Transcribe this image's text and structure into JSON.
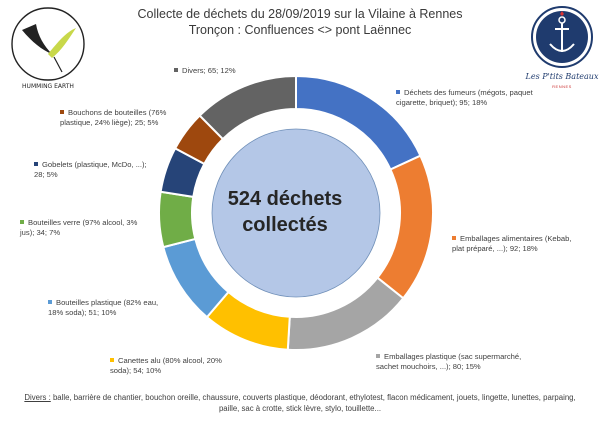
{
  "header": {
    "title_line1": "Collecte de déchets du 28/09/2019 sur la Vilaine à Rennes",
    "title_line2": "Tronçon : Confluences <> pont Laënnec"
  },
  "logos": {
    "left_text": "HUMMING EARTH",
    "right_text": "Les P'tits Bateaux",
    "right_sub": "RENNES"
  },
  "chart_data": {
    "type": "pie",
    "title": "Collecte de déchets du 28/09/2019 sur la Vilaine à Rennes",
    "subtitle": "Tronçon : Confluences <> pont Laënnec",
    "center_label_line1": "524 déchets",
    "center_label_line2": "collectés",
    "total": 524,
    "slices": [
      {
        "label": "Déchets des fumeurs (mégots, paquet cigarette, briquet); 95; 18%",
        "value": 95,
        "percent": 18,
        "color": "#4472C4"
      },
      {
        "label": "Emballages alimentaires (Kebab, plat préparé, ...); 92; 18%",
        "value": 92,
        "percent": 18,
        "color": "#ED7D31"
      },
      {
        "label": "Emballages plastique (sac supermarché, sachet mouchoirs, ...); 80; 15%",
        "value": 80,
        "percent": 15,
        "color": "#A5A5A5"
      },
      {
        "label": "Canettes alu (80% alcool, 20% soda); 54; 10%",
        "value": 54,
        "percent": 10,
        "color": "#FFC000"
      },
      {
        "label": "Bouteilles plastique (82% eau, 18% soda); 51; 10%",
        "value": 51,
        "percent": 10,
        "color": "#5B9BD5"
      },
      {
        "label": "Bouteilles verre (97% alcool, 3% jus); 34; 7%",
        "value": 34,
        "percent": 7,
        "color": "#70AD47"
      },
      {
        "label": "Gobelets (plastique, McDo, ...); 28; 5%",
        "value": 28,
        "percent": 5,
        "color": "#264478"
      },
      {
        "label": "Bouchons de bouteilles (76% plastique, 24% liège); 25; 5%",
        "value": 25,
        "percent": 5,
        "color": "#9E480E"
      },
      {
        "label": "Divers; 65; 12%",
        "value": 65,
        "percent": 12,
        "color": "#636363"
      }
    ]
  },
  "labels": {
    "l0": "Déchets des fumeurs (mégots, paquet cigarette, briquet); 95; 18%",
    "l1": "Emballages alimentaires (Kebab, plat préparé, ...); 92; 18%",
    "l2": "Emballages plastique (sac supermarché, sachet mouchoirs, ...); 80; 15%",
    "l3": "Canettes alu (80% alcool, 20% soda); 54; 10%",
    "l4": "Bouteilles plastique (82% eau, 18% soda); 51; 10%",
    "l5": "Bouteilles verre (97% alcool, 3% jus); 34; 7%",
    "l6": "Gobelets (plastique, McDo, ...); 28; 5%",
    "l7": "Bouchons de bouteilles (76% plastique, 24% liège); 25; 5%",
    "l8": "Divers; 65; 12%"
  },
  "footer": {
    "prefix": "Divers :",
    "text": " balle, barrière de chantier, bouchon oreille, chaussure, couverts plastique, déodorant, ethylotest, flacon médicament, jouets, lingette, lunettes, parpaing, paille, sac à crotte, stick lèvre, stylo, touillette..."
  }
}
